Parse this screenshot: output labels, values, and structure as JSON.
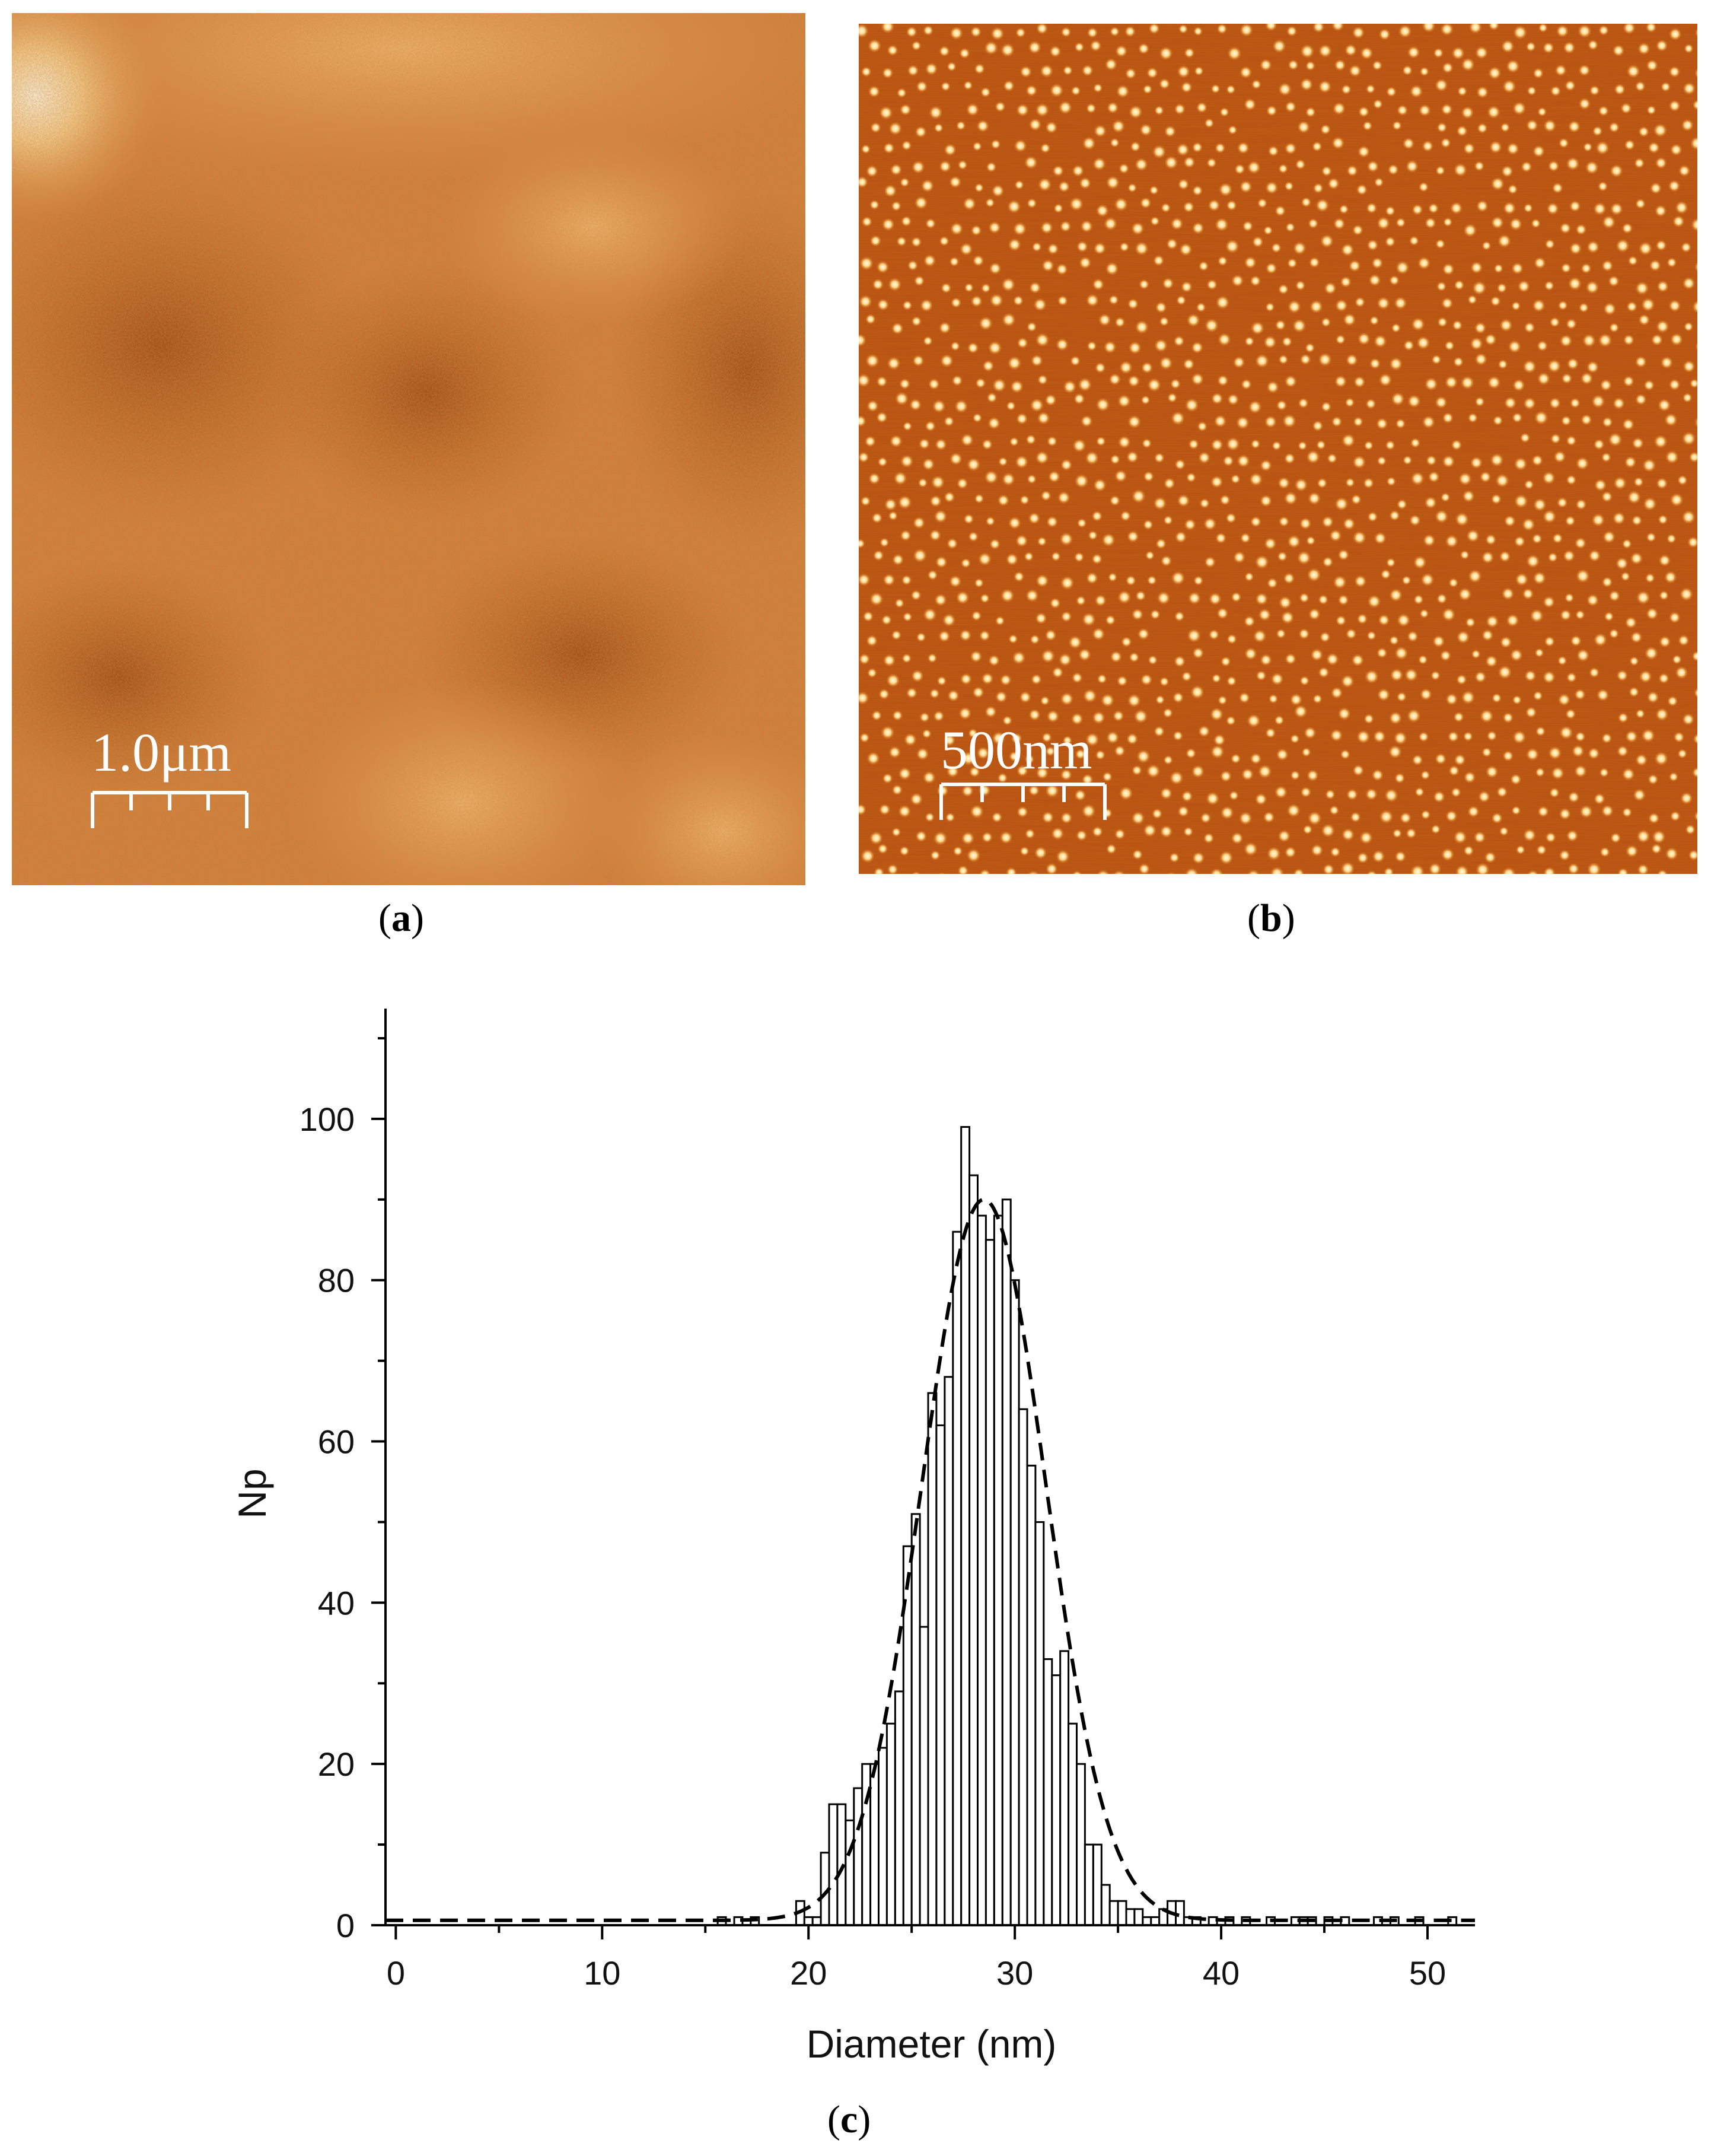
{
  "panel_a": {
    "scalebar_label": "1.0μm",
    "caption_open": "(",
    "caption_letter": "a",
    "caption_close": ")"
  },
  "panel_b": {
    "scalebar_label": "500nm",
    "caption_open": "(",
    "caption_letter": "b",
    "caption_close": ")"
  },
  "panel_c": {
    "caption_open": "(",
    "caption_letter": "c",
    "caption_close": ")"
  },
  "chart_data": {
    "type": "bar",
    "title": "",
    "xlabel": "Diameter (nm)",
    "ylabel": "Np",
    "xlim": [
      -0.5,
      52.3
    ],
    "ylim": [
      0,
      110
    ],
    "x_ticks": [
      0,
      10,
      20,
      30,
      40,
      50
    ],
    "y_ticks": [
      0,
      20,
      40,
      60,
      80,
      100
    ],
    "x_tick_labels": [
      "0",
      "10",
      "20",
      "30",
      "40",
      "50"
    ],
    "y_tick_labels": [
      "0",
      "20",
      "40",
      "60",
      "80",
      "100"
    ],
    "bin_width": 0.4,
    "bars": [
      {
        "x": 15.8,
        "y": 1
      },
      {
        "x": 16.6,
        "y": 1
      },
      {
        "x": 17.4,
        "y": 1
      },
      {
        "x": 19.6,
        "y": 3
      },
      {
        "x": 20.0,
        "y": 1
      },
      {
        "x": 20.4,
        "y": 1
      },
      {
        "x": 20.8,
        "y": 9
      },
      {
        "x": 21.2,
        "y": 15
      },
      {
        "x": 21.6,
        "y": 15
      },
      {
        "x": 22.0,
        "y": 13
      },
      {
        "x": 22.4,
        "y": 17
      },
      {
        "x": 22.8,
        "y": 20
      },
      {
        "x": 23.2,
        "y": 20
      },
      {
        "x": 23.6,
        "y": 22
      },
      {
        "x": 24.0,
        "y": 25
      },
      {
        "x": 24.4,
        "y": 29
      },
      {
        "x": 24.8,
        "y": 47
      },
      {
        "x": 25.2,
        "y": 51
      },
      {
        "x": 25.6,
        "y": 37
      },
      {
        "x": 26.0,
        "y": 66
      },
      {
        "x": 26.4,
        "y": 62
      },
      {
        "x": 26.8,
        "y": 68
      },
      {
        "x": 27.2,
        "y": 86
      },
      {
        "x": 27.6,
        "y": 99
      },
      {
        "x": 28.0,
        "y": 93
      },
      {
        "x": 28.4,
        "y": 88
      },
      {
        "x": 28.8,
        "y": 85
      },
      {
        "x": 29.2,
        "y": 88
      },
      {
        "x": 29.6,
        "y": 90
      },
      {
        "x": 30.0,
        "y": 80
      },
      {
        "x": 30.4,
        "y": 64
      },
      {
        "x": 30.8,
        "y": 57
      },
      {
        "x": 31.2,
        "y": 50
      },
      {
        "x": 31.6,
        "y": 33
      },
      {
        "x": 32.0,
        "y": 31
      },
      {
        "x": 32.4,
        "y": 34
      },
      {
        "x": 32.8,
        "y": 25
      },
      {
        "x": 33.2,
        "y": 20
      },
      {
        "x": 33.6,
        "y": 10
      },
      {
        "x": 34.0,
        "y": 10
      },
      {
        "x": 34.4,
        "y": 5
      },
      {
        "x": 34.8,
        "y": 3
      },
      {
        "x": 35.2,
        "y": 3
      },
      {
        "x": 35.6,
        "y": 2
      },
      {
        "x": 36.0,
        "y": 2
      },
      {
        "x": 36.4,
        "y": 1
      },
      {
        "x": 36.8,
        "y": 1
      },
      {
        "x": 37.2,
        "y": 2
      },
      {
        "x": 37.6,
        "y": 3
      },
      {
        "x": 38.0,
        "y": 3
      },
      {
        "x": 38.4,
        "y": 1
      },
      {
        "x": 38.8,
        "y": 1
      },
      {
        "x": 39.6,
        "y": 1
      },
      {
        "x": 40.4,
        "y": 1
      },
      {
        "x": 41.2,
        "y": 1
      },
      {
        "x": 42.4,
        "y": 1
      },
      {
        "x": 43.6,
        "y": 1
      },
      {
        "x": 44.0,
        "y": 1
      },
      {
        "x": 44.4,
        "y": 1
      },
      {
        "x": 45.2,
        "y": 1
      },
      {
        "x": 46.0,
        "y": 1
      },
      {
        "x": 47.6,
        "y": 1
      },
      {
        "x": 48.4,
        "y": 1
      },
      {
        "x": 49.6,
        "y": 1
      },
      {
        "x": 51.2,
        "y": 1
      }
    ],
    "fit_curve": {
      "style": "dashed",
      "baseline": 0.6,
      "amplitude": 89.4,
      "center": 28.5,
      "sigma": 3.0
    }
  }
}
